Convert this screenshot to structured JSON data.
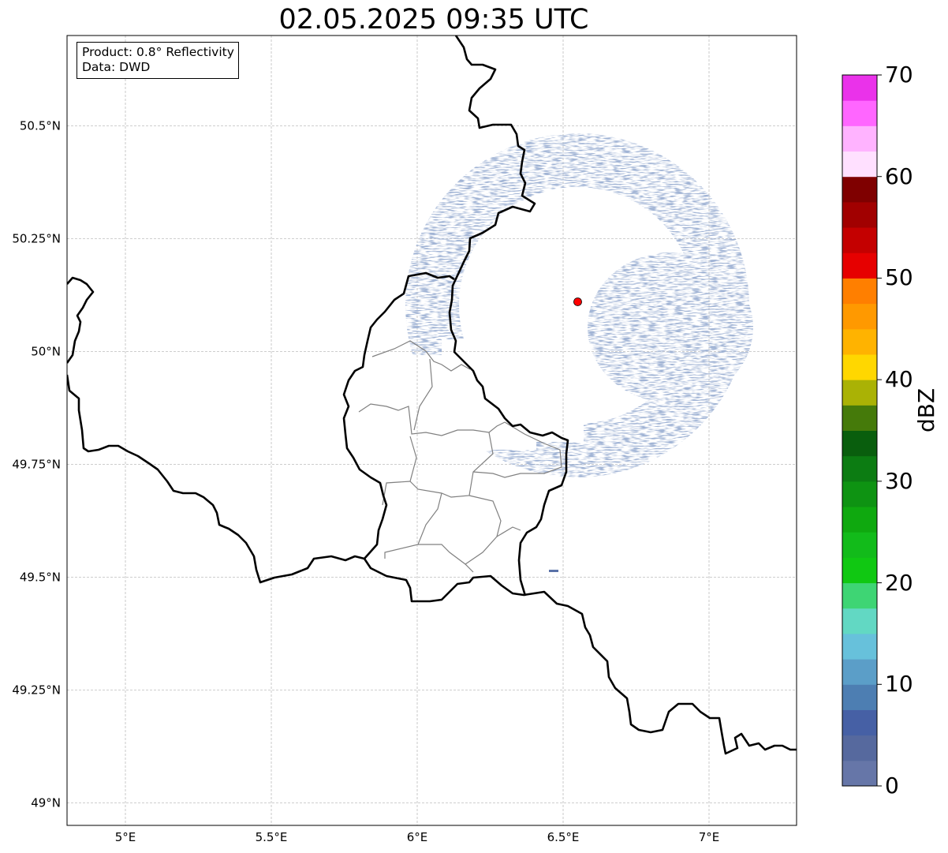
{
  "title": "02.05.2025 09:35 UTC",
  "info": {
    "product": "Product: 0.8° Reflectivity",
    "data": "Data: DWD"
  },
  "map": {
    "lon_range": [
      4.8,
      7.3
    ],
    "lat_range": [
      48.95,
      50.7
    ],
    "lon_ticks": [
      {
        "value": 5.0,
        "label": "5°E"
      },
      {
        "value": 5.5,
        "label": "5.5°E"
      },
      {
        "value": 6.0,
        "label": "6°E"
      },
      {
        "value": 6.5,
        "label": "6.5°E"
      },
      {
        "value": 7.0,
        "label": "7°E"
      }
    ],
    "lat_ticks": [
      {
        "value": 49.0,
        "label": "49°N"
      },
      {
        "value": 49.25,
        "label": "49.25°N"
      },
      {
        "value": 49.5,
        "label": "49.5°N"
      },
      {
        "value": 49.75,
        "label": "49.75°N"
      },
      {
        "value": 50.0,
        "label": "50°N"
      },
      {
        "value": 50.25,
        "label": "50.25°N"
      },
      {
        "value": 50.5,
        "label": "50.5°N"
      }
    ],
    "gridlines": true,
    "radar_site": {
      "lon": 6.55,
      "lat": 50.11,
      "color": "#ff0000"
    },
    "echo_color": "#5a72a8"
  },
  "colorbar": {
    "label": "dBZ",
    "ticks": [
      "0",
      "10",
      "20",
      "30",
      "40",
      "50",
      "60",
      "70"
    ],
    "colors": [
      "#6676a8",
      "#56699e",
      "#4660a5",
      "#4d7eb2",
      "#5b9ec8",
      "#67c1db",
      "#62d8c3",
      "#3ed574",
      "#10c812",
      "#12bb1a",
      "#0fa90f",
      "#0e9312",
      "#0c7c12",
      "#095e0d",
      "#457a0a",
      "#aab205",
      "#ffd700",
      "#ffb300",
      "#ff9900",
      "#ff7f00",
      "#e60000",
      "#c40000",
      "#a10000",
      "#7f0000",
      "#ffe0ff",
      "#ffb3ff",
      "#ff66ff",
      "#ea32ea"
    ]
  }
}
